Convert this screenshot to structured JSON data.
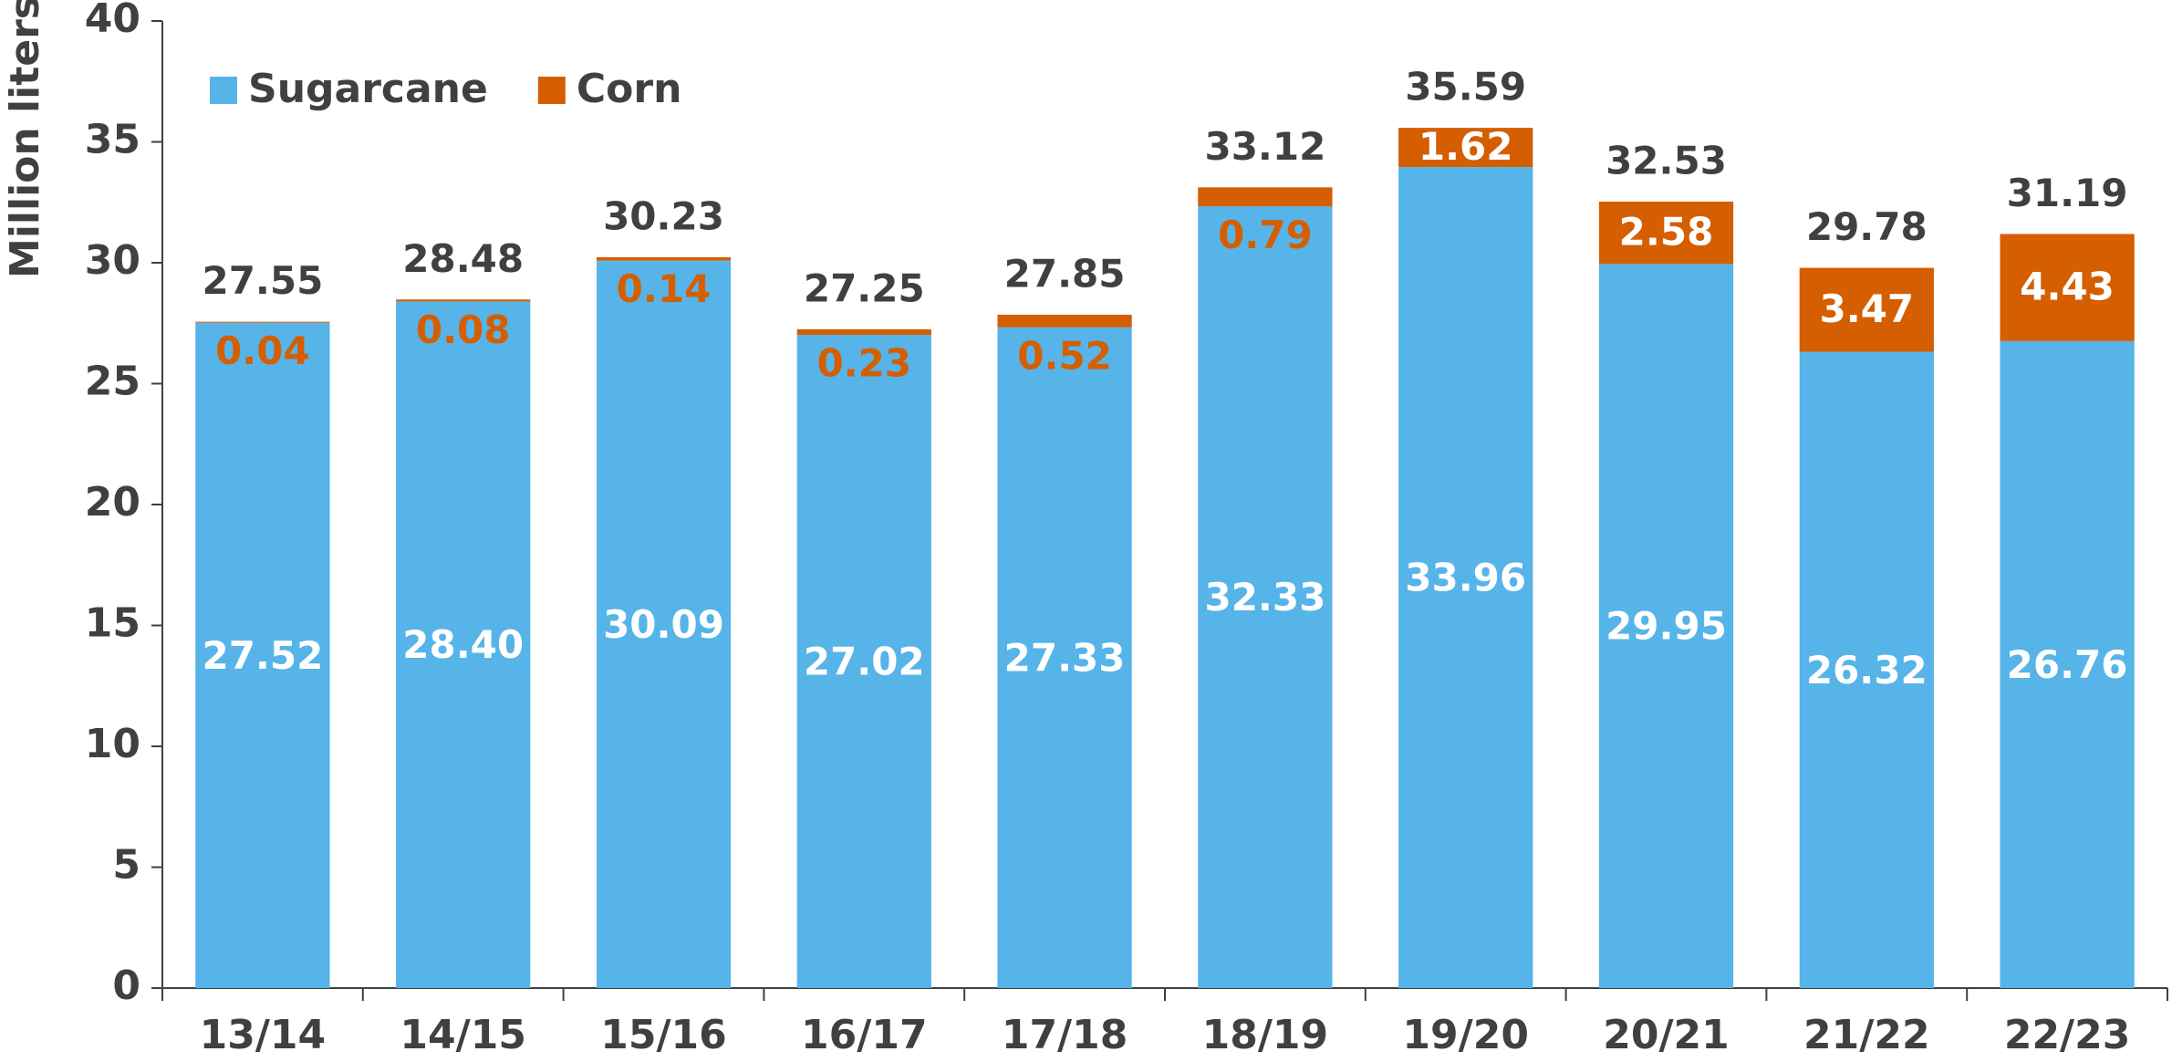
{
  "chart_data": {
    "type": "stacked_bar",
    "y_axis_label": "Million liters",
    "categories": [
      "13/14",
      "14/15",
      "15/16",
      "16/17",
      "17/18",
      "18/19",
      "19/20",
      "20/21",
      "21/22",
      "22/23"
    ],
    "series": [
      {
        "name": "Sugarcane",
        "color": "#56b4e9",
        "values": [
          27.52,
          28.4,
          30.09,
          27.02,
          27.33,
          32.33,
          33.96,
          29.95,
          26.32,
          26.76
        ],
        "value_labels": [
          "27.52",
          "28.40",
          "30.09",
          "27.02",
          "27.33",
          "32.33",
          "33.96",
          "29.95",
          "26.32",
          "26.76"
        ]
      },
      {
        "name": "Corn",
        "color": "#d55e00",
        "values": [
          0.04,
          0.08,
          0.14,
          0.23,
          0.52,
          0.79,
          1.62,
          2.58,
          3.47,
          4.43
        ]
      }
    ],
    "totals": [
      27.55,
      28.48,
      30.23,
      27.25,
      27.85,
      33.12,
      35.59,
      32.53,
      29.78,
      31.19
    ],
    "ylim": [
      0,
      40
    ],
    "yticks": [
      0,
      5,
      10,
      15,
      20,
      25,
      30,
      35,
      40
    ],
    "legend": "upper left"
  }
}
